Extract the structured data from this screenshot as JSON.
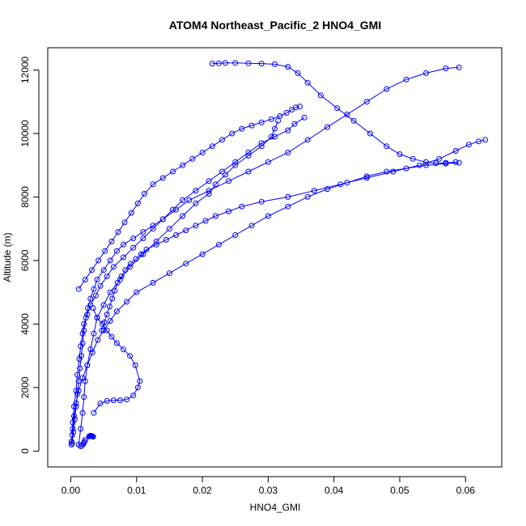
{
  "chart_data": {
    "type": "line",
    "title": "ATOM4 Northeast_Pacific_2 HNO4_GMI",
    "xlabel": "HNO4_GMI",
    "ylabel": "Altitude (m)",
    "xlim": [
      -0.0035,
      0.0655
    ],
    "ylim": [
      -500,
      12700
    ],
    "xticks": [
      0.0,
      0.01,
      0.02,
      0.03,
      0.04,
      0.05,
      0.06
    ],
    "xtick_labels": [
      "0.00",
      "0.01",
      "0.02",
      "0.03",
      "0.04",
      "0.05",
      "0.06"
    ],
    "yticks": [
      0,
      2000,
      4000,
      6000,
      8000,
      10000,
      12000
    ],
    "ytick_labels": [
      "0",
      "2000",
      "4000",
      "6000",
      "8000",
      "10000",
      "12000"
    ],
    "grid": false,
    "legend": "none",
    "series_style": {
      "color": "#0000ff",
      "marker": "open-circle",
      "line": "solid"
    },
    "series": [
      {
        "x": [
          0.0001,
          0.0002,
          0.0003,
          0.0005,
          0.0008,
          0.001,
          0.0013,
          0.0015,
          0.0018,
          0.002,
          0.0025,
          0.003,
          0.0038,
          0.0045,
          0.0055,
          0.0065,
          0.008,
          0.0095,
          0.011,
          0.0125,
          0.014,
          0.0155,
          0.017,
          0.019,
          0.021,
          0.023,
          0.025,
          0.027,
          0.029,
          0.031,
          0.033,
          0.034,
          0.0355
        ],
        "y": [
          200,
          500,
          900,
          1400,
          1900,
          2400,
          2900,
          3300,
          3700,
          4000,
          4300,
          4600,
          4900,
          5200,
          5500,
          5800,
          6100,
          6400,
          6700,
          7000,
          7300,
          7600,
          7900,
          8200,
          8500,
          8800,
          9100,
          9400,
          9700,
          9900,
          10100,
          10300,
          10500
        ]
      },
      {
        "x": [
          0.0012,
          0.0015,
          0.0018,
          0.002,
          0.0022,
          0.0025,
          0.003,
          0.0035,
          0.004,
          0.005,
          0.006,
          0.0075,
          0.009,
          0.011,
          0.013,
          0.015,
          0.017,
          0.019,
          0.021,
          0.022,
          0.0235,
          0.025,
          0.027,
          0.029,
          0.0305,
          0.031,
          0.0315
        ],
        "y": [
          200,
          700,
          1200,
          1700,
          2200,
          2700,
          3200,
          3700,
          4200,
          4600,
          5000,
          5400,
          5800,
          6200,
          6600,
          7000,
          7400,
          7800,
          8100,
          8400,
          8700,
          9000,
          9300,
          9600,
          9900,
          10150,
          10400
        ]
      },
      {
        "x": [
          0.0002,
          0.0004,
          0.0006,
          0.0008,
          0.001,
          0.0012,
          0.0014,
          0.0016,
          0.0018,
          0.002,
          0.0023,
          0.0026,
          0.003,
          0.0035,
          0.004,
          0.005,
          0.006,
          0.007,
          0.008,
          0.0095,
          0.011,
          0.0125,
          0.014,
          0.016,
          0.018,
          0.021,
          0.024,
          0.027,
          0.03,
          0.033,
          0.036,
          0.039,
          0.042,
          0.045,
          0.048,
          0.051,
          0.054,
          0.057,
          0.059
        ],
        "y": [
          250,
          600,
          1000,
          1400,
          1800,
          2200,
          2600,
          3000,
          3400,
          3800,
          4200,
          4500,
          4800,
          5100,
          5400,
          5700,
          6000,
          6300,
          6500,
          6700,
          6900,
          7100,
          7300,
          7600,
          7900,
          8200,
          8500,
          8800,
          9100,
          9400,
          9800,
          10200,
          10600,
          11000,
          11400,
          11700,
          11900,
          12050,
          12080
        ]
      },
      {
        "x": [
          0.0047,
          0.0051,
          0.0055,
          0.0059,
          0.0063,
          0.0067,
          0.0071,
          0.0077,
          0.0083,
          0.0091,
          0.0099,
          0.0107,
          0.0115,
          0.013,
          0.0145,
          0.016,
          0.0175,
          0.019,
          0.0205,
          0.022,
          0.024,
          0.026,
          0.029,
          0.033,
          0.037,
          0.041,
          0.045,
          0.049,
          0.053,
          0.056,
          0.0585,
          0.0605,
          0.062,
          0.063
        ],
        "y": [
          3800,
          4050,
          4300,
          4550,
          4800,
          5050,
          5300,
          5500,
          5700,
          5900,
          6050,
          6200,
          6350,
          6500,
          6650,
          6800,
          6950,
          7100,
          7250,
          7400,
          7550,
          7700,
          7850,
          8000,
          8200,
          8400,
          8600,
          8800,
          9000,
          9200,
          9450,
          9650,
          9750,
          9800
        ]
      },
      {
        "x": [
          0.0001,
          0.0003,
          0.0005,
          0.0008,
          0.0012,
          0.0018,
          0.0025,
          0.0033,
          0.0041,
          0.005,
          0.006,
          0.007,
          0.0085,
          0.01,
          0.0125,
          0.015,
          0.0175,
          0.02,
          0.0225,
          0.025,
          0.0275,
          0.03,
          0.033,
          0.036,
          0.039,
          0.042,
          0.045,
          0.048,
          0.051,
          0.054,
          0.057,
          0.059
        ],
        "y": [
          300,
          700,
          1100,
          1500,
          1900,
          2300,
          2700,
          3100,
          3500,
          3800,
          4100,
          4400,
          4700,
          5000,
          5300,
          5600,
          5900,
          6200,
          6500,
          6800,
          7100,
          7400,
          7700,
          8000,
          8250,
          8450,
          8650,
          8800,
          8900,
          9000,
          9050,
          9080
        ]
      },
      {
        "x": [
          0.0035,
          0.0045,
          0.0055,
          0.0065,
          0.0075,
          0.0085,
          0.0095,
          0.0102,
          0.0105,
          0.0098,
          0.009,
          0.008,
          0.007,
          0.0062,
          0.0055,
          0.0048,
          0.004,
          0.0034
        ],
        "y": [
          1200,
          1500,
          1580,
          1600,
          1600,
          1620,
          1750,
          2000,
          2200,
          2700,
          3000,
          3200,
          3400,
          3600,
          3800,
          4000,
          4200,
          4500
        ]
      },
      {
        "x": [
          0.0215,
          0.0225,
          0.0235,
          0.025,
          0.027,
          0.029,
          0.031,
          0.033,
          0.0345,
          0.036,
          0.038,
          0.0405,
          0.043,
          0.0455,
          0.048,
          0.05,
          0.052,
          0.054,
          0.0555,
          0.057,
          0.0585
        ],
        "y": [
          12200,
          12210,
          12220,
          12220,
          12210,
          12200,
          12180,
          12100,
          11900,
          11600,
          11200,
          10800,
          10400,
          10000,
          9600,
          9350,
          9200,
          9100,
          9060,
          9080,
          9100
        ]
      },
      {
        "x": [
          0.0012,
          0.0022,
          0.0032,
          0.0042,
          0.0052,
          0.0062,
          0.0072,
          0.0082,
          0.0092,
          0.0102,
          0.0112,
          0.0125,
          0.014,
          0.0155,
          0.017,
          0.0185,
          0.02,
          0.0215,
          0.023,
          0.0245,
          0.026,
          0.0275,
          0.029,
          0.0305,
          0.0318,
          0.0328,
          0.0336,
          0.0342,
          0.0348
        ],
        "y": [
          5100,
          5400,
          5700,
          6000,
          6300,
          6600,
          6900,
          7200,
          7500,
          7800,
          8100,
          8400,
          8600,
          8800,
          9000,
          9200,
          9400,
          9600,
          9800,
          10000,
          10150,
          10250,
          10350,
          10450,
          10550,
          10650,
          10750,
          10820,
          10850
        ]
      },
      {
        "x": [
          0.0028,
          0.0029,
          0.003,
          0.0031,
          0.0032,
          0.0033,
          0.0034
        ],
        "y": [
          460,
          470,
          480,
          480,
          470,
          460,
          450
        ]
      },
      {
        "x": [
          0.0015,
          0.0017,
          0.0019,
          0.002,
          0.0021,
          0.0022
        ],
        "y": [
          150,
          180,
          220,
          260,
          300,
          350
        ]
      }
    ]
  }
}
